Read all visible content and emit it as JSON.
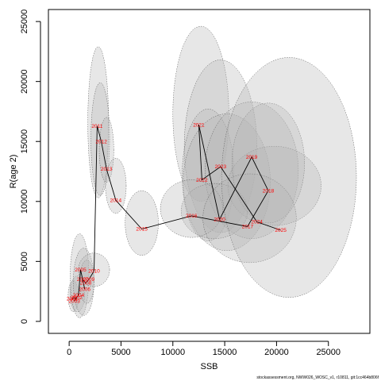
{
  "chart_data": {
    "type": "scatter",
    "title": "",
    "xlabel": "SSB",
    "ylabel": "R(age 2)",
    "xlim": [
      -2000,
      29000
    ],
    "ylim": [
      -1000,
      26000
    ],
    "xticks": [
      0,
      5000,
      10000,
      15000,
      20000,
      25000
    ],
    "yticks": [
      0,
      5000,
      10000,
      15000,
      20000,
      25000
    ],
    "grid": false,
    "point_color": "#ff0000",
    "line_color": "#000000",
    "ellipse_fill": "#b4b4b4",
    "ellipse_stroke": "#555555",
    "points": [
      {
        "year": "2001",
        "x": 300,
        "y": 1900
      },
      {
        "year": "2002",
        "x": 700,
        "y": 2000
      },
      {
        "year": "2003",
        "x": 500,
        "y": 1700
      },
      {
        "year": "2004",
        "x": 900,
        "y": 2200
      },
      {
        "year": "2005",
        "x": 1100,
        "y": 4300
      },
      {
        "year": "2006",
        "x": 1500,
        "y": 2700
      },
      {
        "year": "2007",
        "x": 1300,
        "y": 3500
      },
      {
        "year": "2008",
        "x": 1600,
        "y": 3200
      },
      {
        "year": "2009",
        "x": 1900,
        "y": 3500
      },
      {
        "year": "2010",
        "x": 2400,
        "y": 4200
      },
      {
        "year": "2011",
        "x": 2700,
        "y": 16300
      },
      {
        "year": "2012",
        "x": 3100,
        "y": 15000
      },
      {
        "year": "2013",
        "x": 3600,
        "y": 12700
      },
      {
        "year": "2014",
        "x": 4500,
        "y": 10100
      },
      {
        "year": "2015",
        "x": 7000,
        "y": 7700
      },
      {
        "year": "2016",
        "x": 11800,
        "y": 8800
      },
      {
        "year": "2017",
        "x": 17200,
        "y": 7900
      },
      {
        "year": "2018",
        "x": 19200,
        "y": 10900
      },
      {
        "year": "2019",
        "x": 17600,
        "y": 13700
      },
      {
        "year": "2020",
        "x": 14500,
        "y": 8500
      },
      {
        "year": "2021",
        "x": 12500,
        "y": 16400
      },
      {
        "year": "2022",
        "x": 12800,
        "y": 11800
      },
      {
        "year": "2023",
        "x": 14600,
        "y": 12900
      },
      {
        "year": "2024",
        "x": 18100,
        "y": 8300
      },
      {
        "year": "2025",
        "x": 20400,
        "y": 7600
      }
    ],
    "uncertainty_ellipses": [
      {
        "cx": 400,
        "cy": 2100,
        "rx": 500,
        "ry": 1300
      },
      {
        "cx": 800,
        "cy": 2300,
        "rx": 700,
        "ry": 1500
      },
      {
        "cx": 1000,
        "cy": 3800,
        "rx": 900,
        "ry": 3500
      },
      {
        "cx": 1400,
        "cy": 3300,
        "rx": 1000,
        "ry": 2800
      },
      {
        "cx": 1700,
        "cy": 3300,
        "rx": 700,
        "ry": 1800
      },
      {
        "cx": 2400,
        "cy": 4300,
        "rx": 1500,
        "ry": 1400
      },
      {
        "cx": 2800,
        "cy": 16600,
        "rx": 1000,
        "ry": 6300
      },
      {
        "cx": 3000,
        "cy": 15200,
        "rx": 900,
        "ry": 4700
      },
      {
        "cx": 3600,
        "cy": 14300,
        "rx": 700,
        "ry": 2700
      },
      {
        "cx": 4500,
        "cy": 11300,
        "rx": 1000,
        "ry": 2300
      },
      {
        "cx": 7000,
        "cy": 8200,
        "rx": 1600,
        "ry": 2700
      },
      {
        "cx": 12700,
        "cy": 17300,
        "rx": 2700,
        "ry": 7300
      },
      {
        "cx": 14600,
        "cy": 14600,
        "rx": 3500,
        "ry": 7200
      },
      {
        "cx": 13400,
        "cy": 12200,
        "rx": 2500,
        "ry": 5500
      },
      {
        "cx": 15200,
        "cy": 11600,
        "rx": 4200,
        "ry": 5700
      },
      {
        "cx": 17600,
        "cy": 12600,
        "rx": 4500,
        "ry": 5700
      },
      {
        "cx": 19800,
        "cy": 11300,
        "rx": 4500,
        "ry": 3300
      },
      {
        "cx": 19200,
        "cy": 13200,
        "rx": 3500,
        "ry": 5000
      },
      {
        "cx": 14000,
        "cy": 9200,
        "rx": 3200,
        "ry": 2300
      },
      {
        "cx": 11800,
        "cy": 9400,
        "rx": 3000,
        "ry": 2400
      },
      {
        "cx": 17400,
        "cy": 8600,
        "rx": 4500,
        "ry": 3700
      },
      {
        "cx": 21200,
        "cy": 12000,
        "rx": 6500,
        "ry": 10000
      }
    ],
    "footer_text": "stockassessment.org, NWW026_WOSC_v1, r10811, git:1cc464b806f"
  }
}
